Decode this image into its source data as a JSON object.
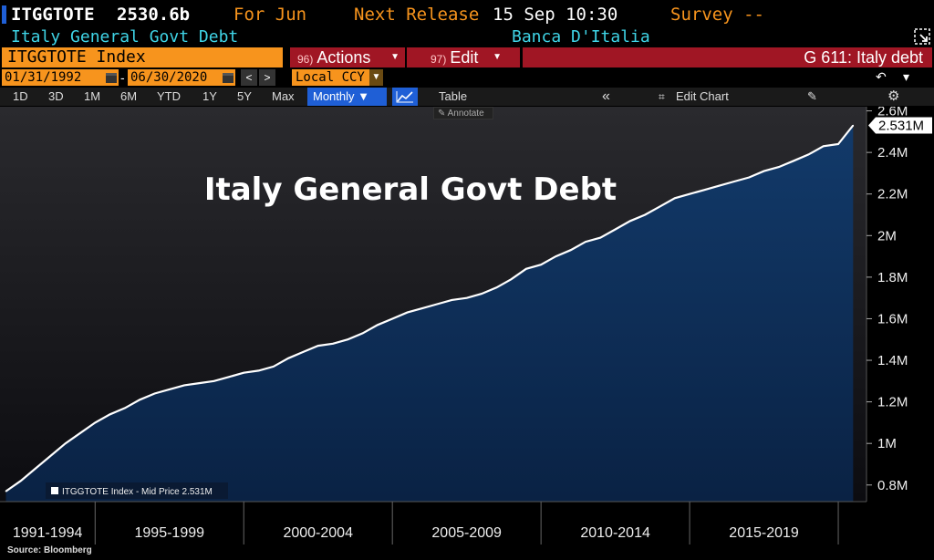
{
  "header": {
    "ticker": "ITGGTOTE",
    "value": "2530.6b",
    "for_label": "For Jun",
    "next_release_label": "Next Release",
    "next_release_value": "15 Sep 10:30",
    "survey_label": "Survey --",
    "description": "Italy General Govt Debt",
    "source_name": "Banca D'Italia"
  },
  "toolbar_top": {
    "index_name": "ITGGTOTE Index",
    "actions_num": "96)",
    "actions_label": "Actions",
    "edit_num": "97)",
    "edit_label": "Edit",
    "page_title": "G 611: Italy debt"
  },
  "date_range": {
    "start": "01/31/1992",
    "end": "06/30/2020",
    "currency": "Local CCY"
  },
  "toolbar": {
    "ranges": [
      "1D",
      "3D",
      "1M",
      "6M",
      "YTD",
      "1Y",
      "5Y",
      "Max"
    ],
    "frequency": "Monthly ▼",
    "table_label": "Table",
    "collapse_label": "«",
    "edit_chart_label": "Edit Chart",
    "annotate_label": "Annotate"
  },
  "colors": {
    "accent_orange": "#f7941d",
    "accent_red": "#a01624",
    "accent_blue": "#1f5fd6",
    "area_fill": "#0f2a4f",
    "line": "#ffffff"
  },
  "footer": {
    "source": "Source: Bloomberg"
  },
  "chart_data": {
    "type": "area",
    "title": "Italy General Govt Debt",
    "legend": "ITGGTOTE Index - Mid Price 2.531M",
    "last_value_label": "2.531M",
    "y_ticks": [
      "0.8M",
      "1M",
      "1.2M",
      "1.4M",
      "1.6M",
      "1.8M",
      "2M",
      "2.2M",
      "2.4M",
      "2.6M"
    ],
    "ylim": [
      0.72,
      2.62
    ],
    "x_period_labels": [
      "1991-1994",
      "1995-1999",
      "2000-2004",
      "2005-2009",
      "2010-2014",
      "2015-2019"
    ],
    "x": [
      1992.0,
      1992.5,
      1993.0,
      1993.5,
      1994.0,
      1994.5,
      1995.0,
      1995.5,
      1996.0,
      1996.5,
      1997.0,
      1997.5,
      1998.0,
      1998.5,
      1999.0,
      1999.5,
      2000.0,
      2000.5,
      2001.0,
      2001.5,
      2002.0,
      2002.5,
      2003.0,
      2003.5,
      2004.0,
      2004.5,
      2005.0,
      2005.5,
      2006.0,
      2006.5,
      2007.0,
      2007.5,
      2008.0,
      2008.5,
      2009.0,
      2009.5,
      2010.0,
      2010.5,
      2011.0,
      2011.5,
      2012.0,
      2012.5,
      2013.0,
      2013.5,
      2014.0,
      2014.5,
      2015.0,
      2015.5,
      2016.0,
      2016.5,
      2017.0,
      2017.5,
      2018.0,
      2018.5,
      2019.0,
      2019.5,
      2020.0,
      2020.5
    ],
    "values": [
      0.77,
      0.82,
      0.88,
      0.94,
      1.0,
      1.05,
      1.1,
      1.14,
      1.17,
      1.21,
      1.24,
      1.26,
      1.28,
      1.29,
      1.3,
      1.32,
      1.34,
      1.35,
      1.37,
      1.41,
      1.44,
      1.47,
      1.48,
      1.5,
      1.53,
      1.57,
      1.6,
      1.63,
      1.65,
      1.67,
      1.69,
      1.7,
      1.72,
      1.75,
      1.79,
      1.84,
      1.86,
      1.9,
      1.93,
      1.97,
      1.99,
      2.03,
      2.07,
      2.1,
      2.14,
      2.18,
      2.2,
      2.22,
      2.24,
      2.26,
      2.28,
      2.31,
      2.33,
      2.36,
      2.39,
      2.43,
      2.44,
      2.53
    ],
    "grid": false,
    "legend_placement": "bottom-left"
  }
}
